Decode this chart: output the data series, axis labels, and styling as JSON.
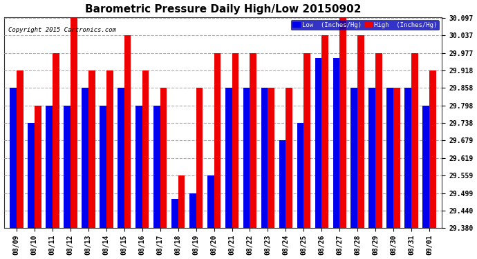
{
  "title": "Barometric Pressure Daily High/Low 20150902",
  "copyright": "Copyright 2015 Cartronics.com",
  "dates": [
    "08/09",
    "08/10",
    "08/11",
    "08/12",
    "08/13",
    "08/14",
    "08/15",
    "08/16",
    "08/17",
    "08/18",
    "08/19",
    "08/20",
    "08/21",
    "08/22",
    "08/23",
    "08/24",
    "08/25",
    "08/26",
    "08/27",
    "08/28",
    "08/29",
    "08/30",
    "08/31",
    "09/01"
  ],
  "low": [
    29.858,
    29.738,
    29.798,
    29.798,
    29.858,
    29.798,
    29.858,
    29.798,
    29.798,
    29.48,
    29.499,
    29.559,
    29.858,
    29.858,
    29.858,
    29.679,
    29.738,
    29.96,
    29.96,
    29.858,
    29.858,
    29.858,
    29.858,
    29.798
  ],
  "high": [
    29.918,
    29.798,
    29.977,
    30.097,
    29.918,
    29.918,
    30.037,
    29.918,
    29.858,
    29.559,
    29.858,
    29.977,
    29.977,
    29.977,
    29.858,
    29.858,
    29.977,
    30.037,
    30.097,
    30.037,
    29.977,
    29.858,
    29.977,
    29.918
  ],
  "ylim_min": 29.38,
  "ylim_max": 30.097,
  "yticks": [
    29.38,
    29.44,
    29.499,
    29.559,
    29.619,
    29.679,
    29.738,
    29.798,
    29.858,
    29.918,
    29.977,
    30.037,
    30.097
  ],
  "bar_width": 0.38,
  "low_color": "#0000EE",
  "high_color": "#EE0000",
  "bg_color": "#FFFFFF",
  "plot_bg_color": "#FFFFFF",
  "grid_color": "#AAAAAA",
  "title_fontsize": 11,
  "tick_fontsize": 7,
  "legend_low_label": "Low  (Inches/Hg)",
  "legend_high_label": "High  (Inches/Hg)"
}
